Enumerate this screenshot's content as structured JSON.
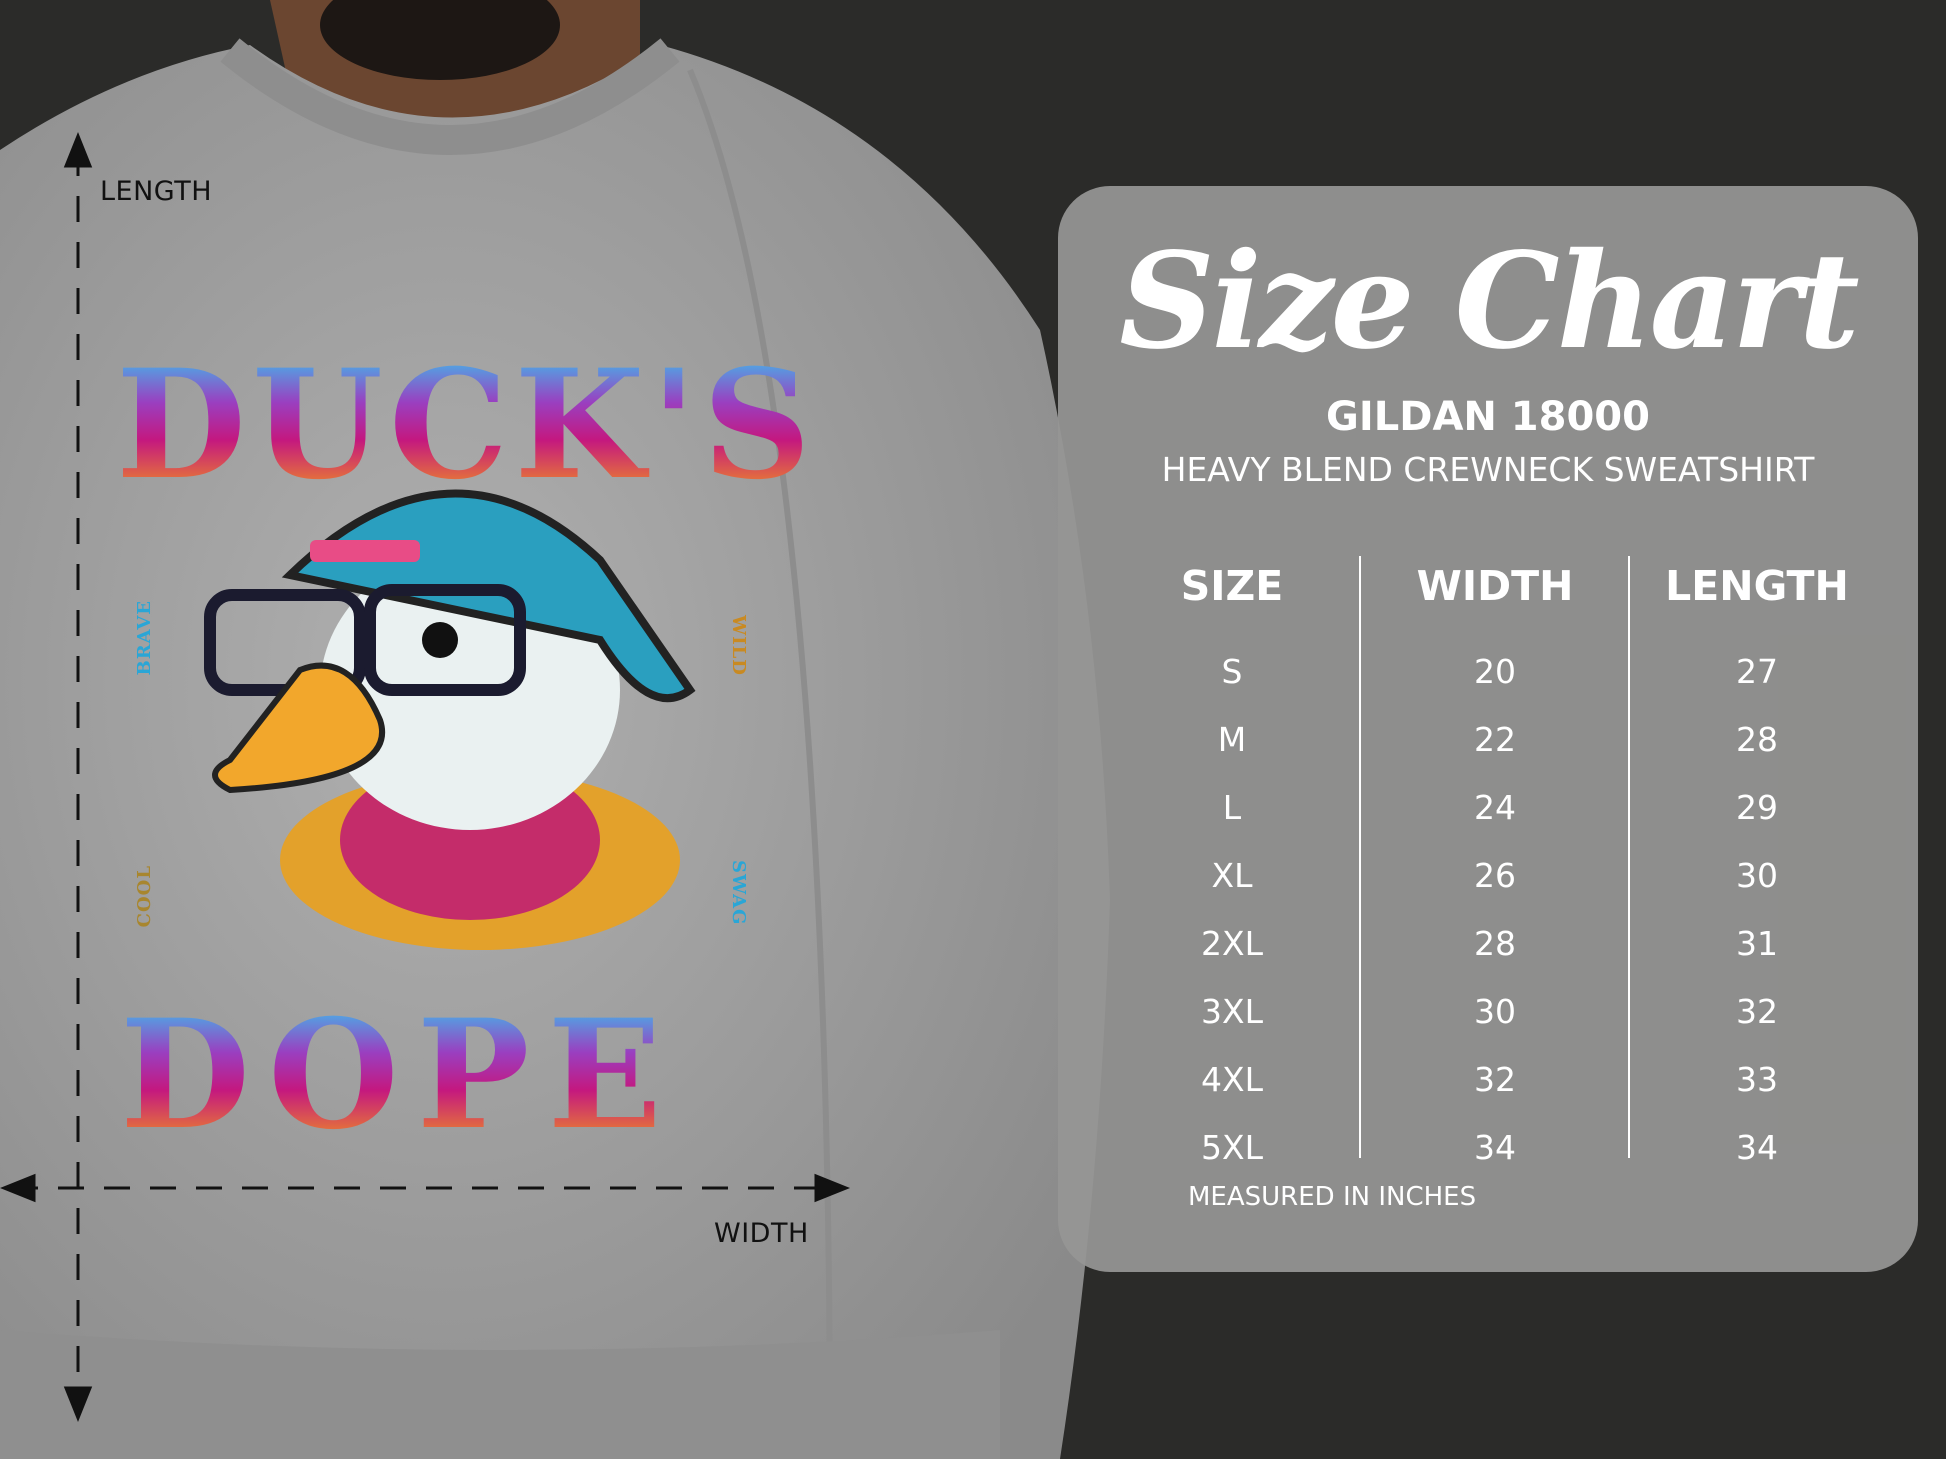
{
  "measure_labels": {
    "length": "LENGTH",
    "width": "WIDTH"
  },
  "design": {
    "top_word": "DUCK'S",
    "bottom_word": "DOPE",
    "side_words": [
      "BRAVE",
      "WILD",
      "COOL",
      "SWAG"
    ]
  },
  "chart": {
    "title": "Size Chart",
    "brand": "GILDAN 18000",
    "product": "HEAVY BLEND CREWNECK SWEATSHIRT",
    "columns": [
      {
        "header": "SIZE",
        "cells": [
          "S",
          "M",
          "L",
          "XL",
          "2XL",
          "3XL",
          "4XL",
          "5XL"
        ]
      },
      {
        "header": "WIDTH",
        "cells": [
          "20",
          "22",
          "24",
          "26",
          "28",
          "30",
          "32",
          "34"
        ]
      },
      {
        "header": "LENGTH",
        "cells": [
          "27",
          "28",
          "29",
          "30",
          "31",
          "32",
          "33",
          "34"
        ]
      }
    ],
    "note": "MEASURED IN INCHES"
  },
  "colors": {
    "background": "#2b2b29",
    "sweatshirt": "#a3a3a3",
    "panel": "#969694",
    "text": "#ffffff"
  }
}
